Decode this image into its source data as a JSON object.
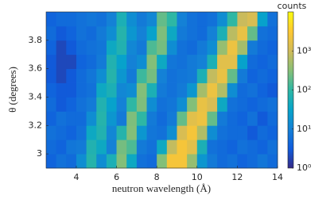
{
  "chart_data": {
    "type": "heatmap",
    "xlabel": "neutron wavelength (Å)",
    "ylabel": "θ (degrees)",
    "colorbar_label": "counts",
    "xlim": [
      2.5,
      14
    ],
    "ylim": [
      2.9,
      4.0
    ],
    "xticks": [
      4,
      6,
      8,
      10,
      12,
      14
    ],
    "yticks": [
      3,
      3.2,
      3.4,
      3.6,
      3.8
    ],
    "colormap": "parula",
    "color_scale": "log",
    "clim": [
      1,
      10000
    ],
    "cticks": [
      {
        "value": 1,
        "label": "10⁰"
      },
      {
        "value": 10,
        "label": "10¹"
      },
      {
        "value": 100,
        "label": "10²"
      },
      {
        "value": 1000,
        "label": "10³"
      }
    ],
    "x_bins": [
      2.5,
      3,
      3.5,
      4,
      4.5,
      5,
      5.5,
      6,
      6.5,
      7,
      7.5,
      8,
      8.5,
      9,
      9.5,
      10,
      10.5,
      11,
      11.5,
      12,
      12.5,
      13,
      13.5,
      14
    ],
    "y_bins": [
      2.9,
      3.0,
      3.1,
      3.2,
      3.3,
      3.4,
      3.5,
      3.6,
      3.7,
      3.8,
      3.9,
      4.0
    ],
    "z": [
      [
        4,
        6,
        5,
        15,
        80,
        15,
        60,
        300,
        40,
        6,
        5,
        300,
        2500,
        2500,
        400,
        20,
        8,
        5,
        6,
        4,
        5,
        7,
        5
      ],
      [
        5,
        4,
        7,
        8,
        70,
        40,
        10,
        250,
        150,
        8,
        6,
        40,
        800,
        2500,
        1500,
        60,
        6,
        5,
        4,
        6,
        5,
        4,
        6
      ],
      [
        6,
        5,
        4,
        6,
        40,
        70,
        12,
        80,
        300,
        20,
        7,
        6,
        15,
        1200,
        2500,
        600,
        15,
        6,
        5,
        5,
        3,
        5,
        4
      ],
      [
        4,
        6,
        5,
        5,
        15,
        80,
        20,
        8,
        280,
        100,
        8,
        5,
        8,
        200,
        1500,
        2000,
        200,
        8,
        5,
        4,
        6,
        3,
        5
      ],
      [
        5,
        3,
        4,
        6,
        8,
        70,
        30,
        10,
        100,
        280,
        15,
        6,
        7,
        15,
        300,
        1800,
        1200,
        40,
        6,
        5,
        4,
        5,
        6
      ],
      [
        4,
        3,
        3,
        5,
        6,
        40,
        60,
        12,
        15,
        300,
        60,
        8,
        6,
        8,
        20,
        500,
        2000,
        600,
        15,
        5,
        6,
        4,
        3
      ],
      [
        3,
        2,
        3,
        5,
        7,
        15,
        80,
        20,
        8,
        120,
        250,
        10,
        6,
        7,
        8,
        60,
        800,
        1800,
        200,
        8,
        4,
        5,
        4
      ],
      [
        3,
        2,
        2,
        4,
        5,
        8,
        70,
        30,
        10,
        15,
        300,
        40,
        7,
        6,
        8,
        10,
        60,
        1500,
        1500,
        30,
        5,
        4,
        5
      ],
      [
        4,
        2,
        3,
        5,
        6,
        7,
        40,
        70,
        12,
        8,
        150,
        250,
        15,
        6,
        5,
        8,
        15,
        400,
        2000,
        500,
        8,
        5,
        4
      ],
      [
        5,
        3,
        4,
        6,
        5,
        8,
        15,
        80,
        20,
        10,
        30,
        280,
        40,
        8,
        6,
        5,
        10,
        60,
        700,
        1800,
        200,
        6,
        5
      ],
      [
        4,
        5,
        5,
        6,
        7,
        6,
        10,
        60,
        15,
        8,
        12,
        200,
        100,
        10,
        6,
        5,
        6,
        15,
        100,
        900,
        1200,
        30,
        6
      ]
    ]
  }
}
